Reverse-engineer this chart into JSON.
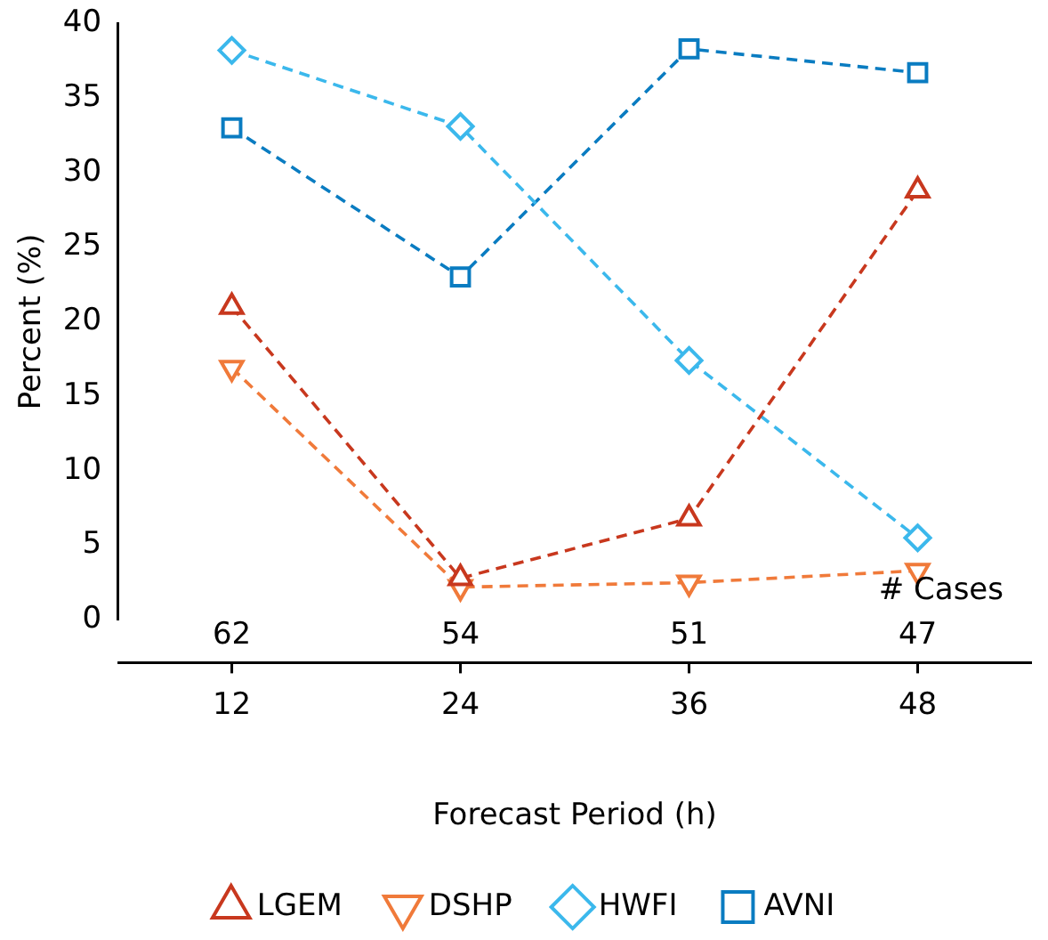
{
  "chart_data": {
    "type": "line",
    "x": [
      12,
      24,
      36,
      48
    ],
    "xlabel": "Forecast Period (h)",
    "ylabel": "Percent (%)",
    "xlim": [
      6,
      54
    ],
    "xticks": [
      12,
      24,
      36,
      48
    ],
    "ylim": [
      0,
      40
    ],
    "yticks": [
      0,
      5,
      10,
      15,
      20,
      25,
      30,
      35,
      40
    ],
    "grid": false,
    "legend": "bottom",
    "line_style": "dashed",
    "series": [
      {
        "name": "AVNI",
        "color": "#0a7cc1",
        "marker": "square",
        "values": [
          33.0,
          23.0,
          38.3,
          36.7
        ]
      },
      {
        "name": "HWFI",
        "color": "#3bb8ec",
        "marker": "diamond",
        "values": [
          38.2,
          33.1,
          17.4,
          5.5
        ]
      },
      {
        "name": "DSHP",
        "color": "#f07a3a",
        "marker": "triangle-down",
        "values": [
          16.9,
          2.2,
          2.5,
          3.3
        ]
      },
      {
        "name": "LGEM",
        "color": "#c8381e",
        "marker": "triangle",
        "values": [
          21.0,
          2.8,
          6.8,
          28.8
        ]
      }
    ],
    "annotations": [
      "# Cases",
      "62",
      "54",
      "51",
      "47"
    ]
  }
}
